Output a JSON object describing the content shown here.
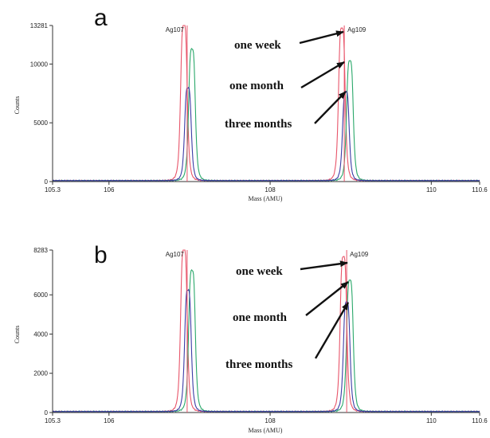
{
  "chart_data": [
    {
      "type": "line",
      "panel": "a",
      "xlabel": "Mass (AMU)",
      "ylabel": "Counts",
      "xlim": [
        105.3,
        110.6
      ],
      "ylim": [
        0,
        13281
      ],
      "xticks": [
        105.3,
        106,
        108,
        110,
        110.6
      ],
      "xtick_labels": [
        "105.3",
        "106",
        "108",
        "110",
        "110.6"
      ],
      "yticks": [
        0,
        5000,
        10000,
        13281
      ],
      "ytick_labels": [
        "0",
        "5000",
        "10000",
        "13281"
      ],
      "peak_labels": [
        {
          "text": "Ag107",
          "x": 106.97
        },
        {
          "text": "Ag109",
          "x": 108.92
        }
      ],
      "series": [
        {
          "color": "#e8556a",
          "peaks": [
            {
              "center": 106.93,
              "height": 13281
            },
            {
              "center": 108.89,
              "height": 13000
            }
          ]
        },
        {
          "color": "#2aa86a",
          "peaks": [
            {
              "center": 107.03,
              "height": 11200
            },
            {
              "center": 108.99,
              "height": 10200
            }
          ]
        },
        {
          "color": "#3c3ca6",
          "peaks": [
            {
              "center": 106.98,
              "height": 7900
            },
            {
              "center": 108.94,
              "height": 7600
            }
          ]
        }
      ],
      "annotations": [
        "one week",
        "one month",
        "three months"
      ]
    },
    {
      "type": "line",
      "panel": "b",
      "xlabel": "Mass (AMU)",
      "ylabel": "Counts",
      "xlim": [
        105.3,
        110.6
      ],
      "ylim": [
        0,
        8283
      ],
      "xticks": [
        105.3,
        106,
        108,
        110,
        110.6
      ],
      "xtick_labels": [
        "105.3",
        "106",
        "108",
        "110",
        "110.6"
      ],
      "yticks": [
        0,
        2000,
        4000,
        6000,
        8283
      ],
      "ytick_labels": [
        "0",
        "2000",
        "4000",
        "6000",
        "8283"
      ],
      "peak_labels": [
        {
          "text": "Ag107",
          "x": 106.97
        },
        {
          "text": "Ag109",
          "x": 108.95
        }
      ],
      "series": [
        {
          "color": "#e8556a",
          "peaks": [
            {
              "center": 106.93,
              "height": 8283
            },
            {
              "center": 108.91,
              "height": 7900
            }
          ]
        },
        {
          "color": "#2aa86a",
          "peaks": [
            {
              "center": 107.03,
              "height": 7200
            },
            {
              "center": 108.99,
              "height": 6700
            }
          ]
        },
        {
          "color": "#3c3ca6",
          "peaks": [
            {
              "center": 106.98,
              "height": 6200
            },
            {
              "center": 108.95,
              "height": 5600
            }
          ]
        }
      ],
      "annotations": [
        "one week",
        "one month",
        "three months"
      ]
    }
  ]
}
